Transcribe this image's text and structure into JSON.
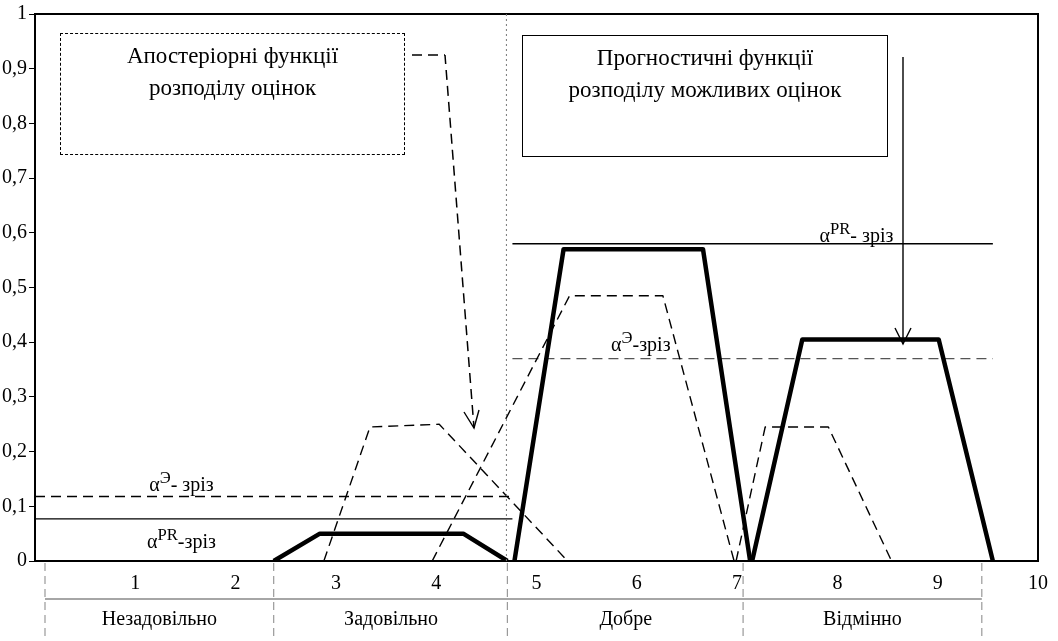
{
  "chart_data": {
    "type": "line",
    "xlim": [
      0,
      10
    ],
    "ylim": [
      0,
      1
    ],
    "xticks": [
      1,
      2,
      3,
      4,
      5,
      6,
      7,
      8,
      9,
      10
    ],
    "yticks": [
      0,
      {
        "value": 0.1,
        "label": "0,1"
      },
      {
        "value": 0.2,
        "label": "0,2"
      },
      {
        "value": 0.3,
        "label": "0,3"
      },
      {
        "value": 0.4,
        "label": "0,4"
      },
      {
        "value": 0.5,
        "label": "0,5"
      },
      {
        "value": 0.6,
        "label": "0,6"
      },
      {
        "value": 0.7,
        "label": "0,7"
      },
      {
        "value": 0.8,
        "label": "0,8"
      },
      {
        "value": 0.9,
        "label": "0,9"
      },
      1
    ],
    "grid": false,
    "legend": false,
    "marker": "none",
    "series": [
      {
        "color": "#000000",
        "line_style": "solid",
        "x": [
          2.38,
          2.84,
          4.27,
          4.71
        ],
        "values": [
          0,
          0.05,
          0.05,
          0
        ]
      },
      {
        "color": "#000000",
        "line_style": "solid",
        "x": [
          4.78,
          5.27,
          6.66,
          7.13
        ],
        "values": [
          0,
          0.57,
          0.57,
          0
        ]
      },
      {
        "color": "#000000",
        "line_style": "solid",
        "x": [
          7.15,
          7.65,
          9.01,
          9.55
        ],
        "values": [
          0,
          0.405,
          0.405,
          0
        ]
      },
      {
        "color": "#000000",
        "line_style": "dashed",
        "x": [
          2.88,
          3.34,
          4.03,
          5.31
        ],
        "values": [
          0,
          0.245,
          0.25,
          0
        ]
      },
      {
        "color": "#000000",
        "line_style": "dashed",
        "x": [
          3.96,
          5.33,
          6.26,
          6.97
        ],
        "values": [
          0,
          0.485,
          0.485,
          0
        ]
      },
      {
        "color": "#000000",
        "line_style": "dashed",
        "x": [
          6.99,
          7.28,
          7.91,
          8.54
        ],
        "values": [
          0,
          0.245,
          0.245,
          0
        ]
      },
      {
        "color": "#000000",
        "line_style": "solid",
        "x": [
          0,
          4.76
        ],
        "values": [
          0.077,
          0.077
        ]
      },
      {
        "color": "#000000",
        "line_style": "dashed",
        "x": [
          0,
          4.76
        ],
        "values": [
          0.118,
          0.118
        ]
      },
      {
        "color": "#000000",
        "line_style": "solid",
        "x": [
          4.76,
          9.55
        ],
        "values": [
          0.58,
          0.58
        ]
      },
      {
        "color": "#555555",
        "line_style": "dashed",
        "x": [
          4.76,
          9.55
        ],
        "values": [
          0.37,
          0.37
        ]
      }
    ],
    "ref_lines": [
      {
        "axis": "x",
        "value": 4.7,
        "color": "#777777",
        "line_style": "dotted"
      }
    ],
    "annotations": [
      "Апостеріорні функції розподілу оцінок",
      "Прогностичні функції розподілу можливих оцінок",
      "α$^{PR}$- зріз",
      "α$^{Э}$-зріз",
      "α$^{Э}$- зріз",
      "α$^{PR}$-зріз",
      "Незадовільно",
      "Задовільно",
      "Добре",
      "Відмінно"
    ]
  }
}
